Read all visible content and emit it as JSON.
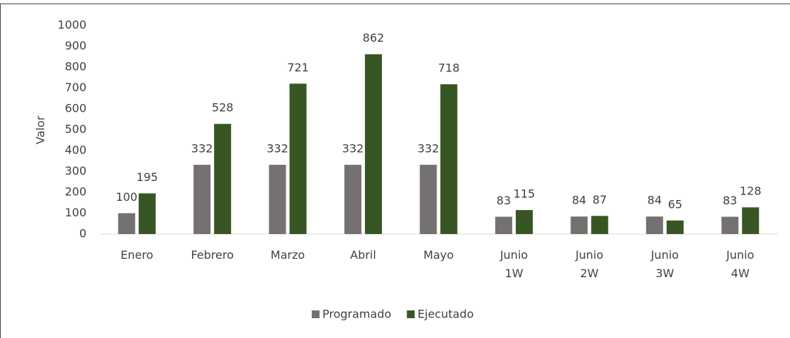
{
  "chart_data": {
    "type": "bar",
    "y_label": "Valor",
    "categories": [
      "Enero",
      "Febrero",
      "Marzo",
      "Abril",
      "Mayo",
      "Junio\n1W",
      "Junio\n2W",
      "Junio\n3W",
      "Junio\n4W"
    ],
    "series": [
      {
        "name": "Programado",
        "color": "#767171",
        "values": [
          100,
          332,
          332,
          332,
          332,
          83,
          84,
          84,
          83
        ]
      },
      {
        "name": "Ejecutado",
        "color": "#375623",
        "values": [
          195,
          528,
          721,
          862,
          718,
          115,
          87,
          65,
          128
        ]
      }
    ],
    "ylim": [
      0,
      1000
    ],
    "yticks": [
      0,
      100,
      200,
      300,
      400,
      500,
      600,
      700,
      800,
      900,
      1000
    ],
    "legend": "bottom"
  }
}
